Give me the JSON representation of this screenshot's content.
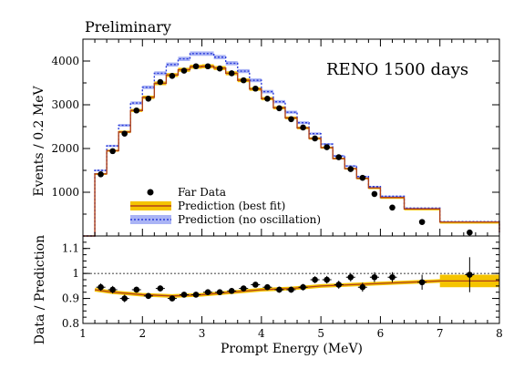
{
  "chart_data": [
    {
      "type": "step-histogram-with-points",
      "banner": "Preliminary",
      "annotation": "RENO 1500 days",
      "ylabel": "Events / 0.2 MeV",
      "xlim": [
        1,
        8
      ],
      "ylim": [
        0,
        4500
      ],
      "yticks": [
        1000,
        2000,
        3000,
        4000
      ],
      "legend_position": "bottom-left",
      "legend": {
        "data": "Far Data",
        "best_fit": "Prediction (best fit)",
        "no_osc": "Prediction (no oscillation)"
      },
      "colors": {
        "best_fit_line": "#b0421a",
        "best_fit_band": "#f5c400",
        "no_osc_line": "#2b3bd9",
        "no_osc_band": "#aab4f5",
        "data": "#000000"
      },
      "bin_edges": [
        1.0,
        1.2,
        1.4,
        1.6,
        1.8,
        2.0,
        2.2,
        2.4,
        2.6,
        2.8,
        3.0,
        3.2,
        3.4,
        3.6,
        3.8,
        4.0,
        4.2,
        4.4,
        4.6,
        4.8,
        5.0,
        5.2,
        5.4,
        5.6,
        5.8,
        6.0,
        6.4,
        7.0,
        8.0
      ],
      "best_fit": [
        0,
        1420,
        1950,
        2380,
        2870,
        3170,
        3490,
        3680,
        3800,
        3870,
        3880,
        3840,
        3720,
        3560,
        3360,
        3140,
        2930,
        2700,
        2470,
        2230,
        2020,
        1770,
        1540,
        1320,
        1100,
        880,
        620,
        320,
        80
      ],
      "no_oscillation": [
        0,
        1500,
        2060,
        2530,
        3040,
        3400,
        3720,
        3920,
        4050,
        4170,
        4170,
        4090,
        3950,
        3770,
        3560,
        3300,
        3070,
        2830,
        2590,
        2340,
        2100,
        1830,
        1600,
        1360,
        1130,
        910,
        640,
        330,
        80
      ],
      "data_points": {
        "x": [
          1.3,
          1.5,
          1.7,
          1.9,
          2.1,
          2.3,
          2.5,
          2.7,
          2.9,
          3.1,
          3.3,
          3.5,
          3.7,
          3.9,
          4.1,
          4.3,
          4.5,
          4.7,
          4.9,
          5.1,
          5.3,
          5.5,
          5.7,
          5.9,
          6.2,
          6.7,
          7.5
        ],
        "y": [
          1410,
          1940,
          2340,
          2870,
          3140,
          3520,
          3660,
          3780,
          3880,
          3880,
          3830,
          3720,
          3560,
          3370,
          3140,
          2920,
          2670,
          2480,
          2230,
          2030,
          1800,
          1530,
          1330,
          960,
          650,
          320,
          80
        ]
      }
    },
    {
      "type": "ratio-scatter",
      "xlabel": "Prompt Energy (MeV)",
      "ylabel": "Data / Prediction",
      "xlim": [
        1,
        8
      ],
      "ylim": [
        0.8,
        1.15
      ],
      "yticks": [
        0.8,
        0.9,
        1.0,
        1.1
      ],
      "ytick_labels": [
        "0.8",
        "0.9",
        "1",
        "1.1"
      ],
      "xticks": [
        1,
        2,
        3,
        4,
        5,
        6,
        7,
        8
      ],
      "reference_line": 1.0,
      "best_fit_curve": {
        "x": [
          1.2,
          1.5,
          2.0,
          2.5,
          3.0,
          3.5,
          4.0,
          4.5,
          5.0,
          5.5,
          6.0,
          6.5,
          7.0,
          7.5,
          8.0
        ],
        "y": [
          0.935,
          0.925,
          0.915,
          0.91,
          0.915,
          0.925,
          0.935,
          0.94,
          0.95,
          0.955,
          0.96,
          0.965,
          0.97,
          0.97,
          0.97
        ]
      },
      "band": {
        "x_from": 7.0,
        "x_to": 8.0,
        "low": 0.945,
        "high": 0.995
      },
      "points": {
        "x": [
          1.3,
          1.5,
          1.7,
          1.9,
          2.1,
          2.3,
          2.5,
          2.7,
          2.9,
          3.1,
          3.3,
          3.5,
          3.7,
          3.9,
          4.1,
          4.3,
          4.5,
          4.7,
          4.9,
          5.1,
          5.3,
          5.5,
          5.7,
          5.9,
          6.2,
          6.7,
          7.5
        ],
        "y": [
          0.945,
          0.935,
          0.9,
          0.935,
          0.91,
          0.94,
          0.9,
          0.915,
          0.915,
          0.925,
          0.925,
          0.93,
          0.94,
          0.955,
          0.945,
          0.935,
          0.935,
          0.945,
          0.975,
          0.975,
          0.955,
          0.985,
          0.945,
          0.985,
          0.985,
          0.965,
          0.995
        ],
        "err": [
          0.015,
          0.015,
          0.015,
          0.012,
          0.012,
          0.012,
          0.011,
          0.011,
          0.011,
          0.011,
          0.011,
          0.011,
          0.011,
          0.011,
          0.012,
          0.012,
          0.012,
          0.013,
          0.014,
          0.015,
          0.016,
          0.017,
          0.018,
          0.02,
          0.02,
          0.03,
          0.07
        ]
      }
    }
  ]
}
